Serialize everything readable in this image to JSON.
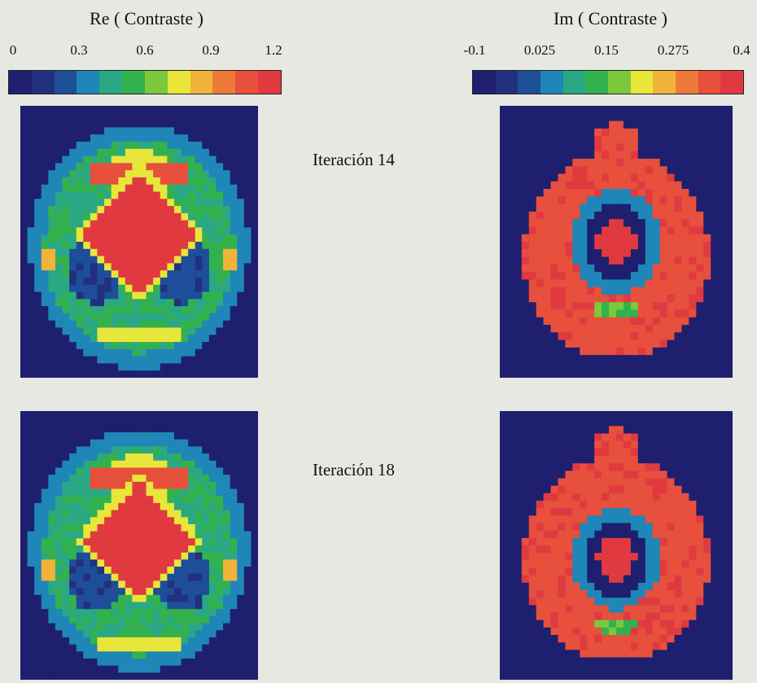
{
  "panels": {
    "re_title": "Re ( Contraste )",
    "im_title": "Im ( Contraste )",
    "iter_14": "Iteración 14",
    "iter_18": "Iteración 18"
  },
  "palette": [
    "#1e1f6e",
    "#22307e",
    "#1e4e9a",
    "#1f86b8",
    "#2aa884",
    "#33b14e",
    "#7cc83c",
    "#e8e63a",
    "#f1b33a",
    "#ee7a3a",
    "#e6503c",
    "#e03a40"
  ],
  "chart_data": [
    {
      "type": "heatmap",
      "title": "Re ( Contraste )",
      "subtitle": "Iteración 14",
      "colorbar": {
        "ticks": [
          "0",
          "0.3",
          "0.6",
          "0.9",
          "1.2"
        ],
        "range": [
          0,
          1.2
        ]
      },
      "grid": [
        34,
        38
      ],
      "regions": [
        {
          "shape": "ellipse",
          "cx": 0.5,
          "cy": 0.52,
          "rx": 0.46,
          "ry": 0.45,
          "value": 0.35
        },
        {
          "shape": "ellipse",
          "cx": 0.5,
          "cy": 0.52,
          "rx": 0.4,
          "ry": 0.39,
          "value": 0.5
        },
        {
          "shape": "ellipse",
          "cx": 0.5,
          "cy": 0.25,
          "rx": 0.13,
          "ry": 0.09,
          "value": 0.75
        },
        {
          "shape": "rect",
          "x0": 0.28,
          "x1": 0.72,
          "y0": 0.2,
          "y1": 0.28,
          "value": 1.05
        },
        {
          "shape": "ellipse",
          "cx": 0.32,
          "cy": 0.6,
          "rx": 0.12,
          "ry": 0.13,
          "value": 0.22
        },
        {
          "shape": "ellipse",
          "cx": 0.68,
          "cy": 0.6,
          "rx": 0.12,
          "ry": 0.13,
          "value": 0.22
        },
        {
          "shape": "diamond",
          "cx": 0.5,
          "cy": 0.47,
          "r": 0.28,
          "value": 0.75
        },
        {
          "shape": "diamond",
          "cx": 0.5,
          "cy": 0.47,
          "r": 0.24,
          "value": 1.15
        },
        {
          "shape": "rect",
          "x0": 0.1,
          "x1": 0.16,
          "y0": 0.52,
          "y1": 0.6,
          "value": 0.85
        },
        {
          "shape": "rect",
          "x0": 0.84,
          "x1": 0.9,
          "y0": 0.52,
          "y1": 0.6,
          "value": 0.85
        },
        {
          "shape": "rect",
          "x0": 0.32,
          "x1": 0.68,
          "y0": 0.82,
          "y1": 0.88,
          "value": 0.75
        }
      ]
    },
    {
      "type": "heatmap",
      "title": "Im ( Contraste )",
      "subtitle": "Iteración 14",
      "colorbar": {
        "ticks": [
          "-0.1",
          "0.025",
          "0.15",
          "0.275",
          "0.4"
        ],
        "range": [
          -0.1,
          0.4
        ]
      },
      "grid": [
        32,
        36
      ],
      "regions": [
        {
          "shape": "ellipse",
          "cx": 0.5,
          "cy": 0.55,
          "rx": 0.4,
          "ry": 0.38,
          "value": 0.35
        },
        {
          "shape": "ellipse",
          "cx": 0.5,
          "cy": 0.13,
          "rx": 0.09,
          "ry": 0.07,
          "value": 0.35
        },
        {
          "shape": "ellipse",
          "cx": 0.5,
          "cy": 0.5,
          "rx": 0.19,
          "ry": 0.19,
          "value": 0.05
        },
        {
          "shape": "ellipse",
          "cx": 0.5,
          "cy": 0.5,
          "rx": 0.14,
          "ry": 0.14,
          "value": -0.08
        },
        {
          "shape": "ellipse",
          "cx": 0.5,
          "cy": 0.5,
          "rx": 0.08,
          "ry": 0.08,
          "value": 0.38
        },
        {
          "shape": "ellipse",
          "cx": 0.5,
          "cy": 0.75,
          "rx": 0.1,
          "ry": 0.03,
          "value": 0.15
        }
      ]
    },
    {
      "type": "heatmap",
      "title": "Re ( Contraste )",
      "subtitle": "Iteración 18",
      "colorbar": {
        "ticks": [
          "0",
          "0.3",
          "0.6",
          "0.9",
          "1.2"
        ],
        "range": [
          0,
          1.2
        ]
      },
      "grid": [
        34,
        38
      ],
      "regions": [
        {
          "shape": "ellipse",
          "cx": 0.5,
          "cy": 0.52,
          "rx": 0.46,
          "ry": 0.45,
          "value": 0.35
        },
        {
          "shape": "ellipse",
          "cx": 0.5,
          "cy": 0.52,
          "rx": 0.4,
          "ry": 0.39,
          "value": 0.5
        },
        {
          "shape": "ellipse",
          "cx": 0.5,
          "cy": 0.25,
          "rx": 0.13,
          "ry": 0.09,
          "value": 0.75
        },
        {
          "shape": "rect",
          "x0": 0.28,
          "x1": 0.72,
          "y0": 0.2,
          "y1": 0.28,
          "value": 1.05
        },
        {
          "shape": "ellipse",
          "cx": 0.32,
          "cy": 0.62,
          "rx": 0.12,
          "ry": 0.13,
          "value": 0.22
        },
        {
          "shape": "ellipse",
          "cx": 0.68,
          "cy": 0.62,
          "rx": 0.12,
          "ry": 0.13,
          "value": 0.22
        },
        {
          "shape": "diamond",
          "cx": 0.5,
          "cy": 0.48,
          "r": 0.27,
          "value": 0.75
        },
        {
          "shape": "diamond",
          "cx": 0.5,
          "cy": 0.48,
          "r": 0.23,
          "value": 1.15
        },
        {
          "shape": "rect",
          "x0": 0.1,
          "x1": 0.16,
          "y0": 0.54,
          "y1": 0.62,
          "value": 0.85
        },
        {
          "shape": "rect",
          "x0": 0.84,
          "x1": 0.9,
          "y0": 0.54,
          "y1": 0.62,
          "value": 0.85
        },
        {
          "shape": "rect",
          "x0": 0.32,
          "x1": 0.68,
          "y0": 0.84,
          "y1": 0.9,
          "value": 0.75
        }
      ]
    },
    {
      "type": "heatmap",
      "title": "Im ( Contraste )",
      "subtitle": "Iteración 18",
      "colorbar": {
        "ticks": [
          "-0.1",
          "0.025",
          "0.15",
          "0.275",
          "0.4"
        ],
        "range": [
          -0.1,
          0.4
        ]
      },
      "grid": [
        32,
        36
      ],
      "regions": [
        {
          "shape": "ellipse",
          "cx": 0.5,
          "cy": 0.55,
          "rx": 0.4,
          "ry": 0.38,
          "value": 0.35
        },
        {
          "shape": "ellipse",
          "cx": 0.5,
          "cy": 0.13,
          "rx": 0.09,
          "ry": 0.07,
          "value": 0.35
        },
        {
          "shape": "ellipse",
          "cx": 0.5,
          "cy": 0.55,
          "rx": 0.19,
          "ry": 0.19,
          "value": 0.05
        },
        {
          "shape": "ellipse",
          "cx": 0.5,
          "cy": 0.55,
          "rx": 0.14,
          "ry": 0.14,
          "value": -0.08
        },
        {
          "shape": "ellipse",
          "cx": 0.5,
          "cy": 0.55,
          "rx": 0.08,
          "ry": 0.08,
          "value": 0.38
        },
        {
          "shape": "ellipse",
          "cx": 0.5,
          "cy": 0.8,
          "rx": 0.1,
          "ry": 0.03,
          "value": 0.15
        }
      ]
    }
  ]
}
